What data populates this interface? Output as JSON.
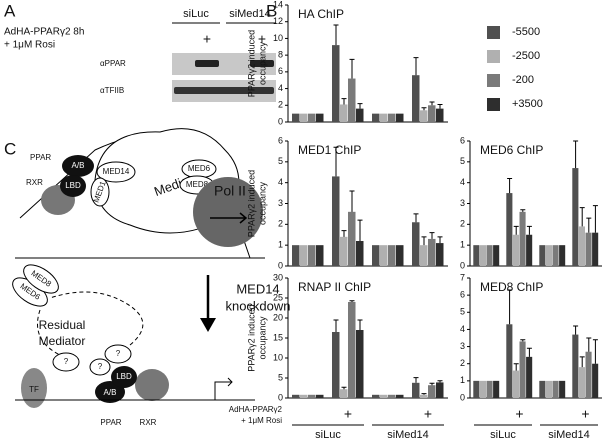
{
  "panel_labels": [
    "A",
    "B",
    "C"
  ],
  "blot": {
    "treatment": [
      "AdHA-PPARγ2 8h",
      "+ 1μM Rosi"
    ],
    "groups": [
      "siLuc",
      "siMed14"
    ],
    "lanes": [
      null,
      "+",
      null,
      "+"
    ],
    "bands": [
      "αPPAR",
      "αTFIIB"
    ]
  },
  "x_axis": {
    "treatment": [
      "AdHA-PPARγ2",
      "+ 1μM Rosi"
    ],
    "lanes": [
      null,
      "+",
      null,
      "+"
    ],
    "groups": [
      "siLuc",
      "siMed14"
    ]
  },
  "chart_data": [
    {
      "type": "bar",
      "title": "HA ChIP",
      "ylabel": [
        "PPARγ2 induced",
        "occupancy"
      ],
      "ylim": [
        0,
        14
      ],
      "yticks": [
        0,
        2,
        4,
        6,
        8,
        10,
        12,
        14
      ],
      "legend": true,
      "series": [
        {
          "name": "-5500",
          "color": "#505050",
          "values": [
            1,
            9.2,
            1,
            5.6
          ],
          "errors": [
            null,
            2.4,
            null,
            2.1
          ]
        },
        {
          "name": "-2500",
          "color": "#b0b0b0",
          "values": [
            1,
            2.1,
            1,
            1.4
          ],
          "errors": [
            null,
            0.7,
            null,
            0.3
          ]
        },
        {
          "name": "-200",
          "color": "#7a7a7a",
          "values": [
            1,
            5.2,
            1,
            2.0
          ],
          "errors": [
            null,
            2.3,
            null,
            0.4
          ]
        },
        {
          "name": "+3500",
          "color": "#2e2e2e",
          "values": [
            1,
            1.6,
            1,
            1.6
          ],
          "errors": [
            null,
            0.6,
            null,
            0.5
          ]
        }
      ]
    },
    {
      "type": "bar",
      "title": "MED1 ChIP",
      "ylabel": [
        "PPARγ2 induced",
        "occupancy"
      ],
      "ylim": [
        0,
        6
      ],
      "yticks": [
        0,
        1,
        2,
        3,
        4,
        5,
        6
      ],
      "legend": false,
      "series": [
        {
          "name": "-5500",
          "color": "#505050",
          "values": [
            1,
            4.3,
            1,
            2.1
          ],
          "errors": [
            null,
            1.4,
            null,
            0.4
          ]
        },
        {
          "name": "-2500",
          "color": "#b0b0b0",
          "values": [
            1,
            1.4,
            1,
            1.0
          ],
          "errors": [
            null,
            0.3,
            null,
            0.4
          ]
        },
        {
          "name": "-200",
          "color": "#7a7a7a",
          "values": [
            1,
            2.6,
            1,
            1.3
          ],
          "errors": [
            null,
            1.0,
            null,
            0.3
          ]
        },
        {
          "name": "+3500",
          "color": "#2e2e2e",
          "values": [
            1,
            1.2,
            1,
            1.1
          ],
          "errors": [
            null,
            1.0,
            null,
            0.3
          ]
        }
      ]
    },
    {
      "type": "bar",
      "title": "MED6 ChIP",
      "ylim": [
        0,
        6
      ],
      "yticks": [
        0,
        1,
        2,
        3,
        4,
        5,
        6
      ],
      "legend": false,
      "series": [
        {
          "name": "-5500",
          "color": "#505050",
          "values": [
            1,
            3.5,
            1,
            4.7
          ],
          "errors": [
            null,
            0.7,
            null,
            1.3
          ]
        },
        {
          "name": "-2500",
          "color": "#b0b0b0",
          "values": [
            1,
            1.5,
            1,
            1.9
          ],
          "errors": [
            null,
            0.4,
            null,
            0.9
          ]
        },
        {
          "name": "-200",
          "color": "#7a7a7a",
          "values": [
            1,
            2.6,
            1,
            1.6
          ],
          "errors": [
            null,
            0.1,
            null,
            0.7
          ]
        },
        {
          "name": "+3500",
          "color": "#2e2e2e",
          "values": [
            1,
            1.5,
            1,
            1.6
          ],
          "errors": [
            null,
            0.4,
            null,
            1.3
          ]
        }
      ]
    },
    {
      "type": "bar",
      "title": "RNAP II ChIP",
      "ylabel": [
        "PPARγ2 induced",
        "occupancy"
      ],
      "ylim": [
        0,
        30
      ],
      "yticks": [
        0,
        5,
        10,
        15,
        20,
        25,
        30
      ],
      "legend": false,
      "series": [
        {
          "name": "-5500",
          "color": "#505050",
          "values": [
            0.8,
            16.5,
            0.8,
            3.8
          ],
          "errors": [
            null,
            3.0,
            null,
            1.3
          ]
        },
        {
          "name": "-2500",
          "color": "#b0b0b0",
          "values": [
            0.8,
            2.2,
            0.8,
            0.8
          ],
          "errors": [
            null,
            0.5,
            null,
            0.3
          ]
        },
        {
          "name": "-200",
          "color": "#7a7a7a",
          "values": [
            0.8,
            24,
            0.8,
            3.2
          ],
          "errors": [
            null,
            0.3,
            null,
            0.5
          ]
        },
        {
          "name": "+3500",
          "color": "#2e2e2e",
          "values": [
            0.8,
            17,
            0.8,
            3.9
          ],
          "errors": [
            null,
            2.5,
            null,
            0.4
          ]
        }
      ]
    },
    {
      "type": "bar",
      "title": "MED8 ChIP",
      "ylim": [
        0,
        7
      ],
      "yticks": [
        0,
        1,
        2,
        3,
        4,
        5,
        6,
        7
      ],
      "legend": false,
      "series": [
        {
          "name": "-5500",
          "color": "#505050",
          "values": [
            1,
            4.3,
            1,
            3.7
          ],
          "errors": [
            null,
            2.0,
            null,
            0.5
          ]
        },
        {
          "name": "-2500",
          "color": "#b0b0b0",
          "values": [
            1,
            1.6,
            1,
            1.8
          ],
          "errors": [
            null,
            0.4,
            null,
            0.6
          ]
        },
        {
          "name": "-200",
          "color": "#7a7a7a",
          "values": [
            1,
            3.3,
            1,
            2.7
          ],
          "errors": [
            null,
            0.1,
            null,
            0.8
          ]
        },
        {
          "name": "+3500",
          "color": "#2e2e2e",
          "values": [
            1,
            2.4,
            1,
            2.0
          ],
          "errors": [
            null,
            0.5,
            null,
            1.4
          ]
        }
      ]
    }
  ],
  "diagram": {
    "top": {
      "ppar": "PPAR",
      "rxr": "RXR",
      "ab": "A/B",
      "lbd": "LBD",
      "med14": "MED14",
      "med1": "MED1",
      "mediator": "Mediator",
      "med6": "MED6",
      "med8": "MED8",
      "pol2": "Pol II"
    },
    "step": [
      "MED14",
      "knockdown"
    ],
    "bottom": {
      "med6": "MED6",
      "med8": "MED8",
      "residual": [
        "Residual",
        "Mediator"
      ],
      "unknown": [
        "?",
        "?",
        "?"
      ],
      "tf": "TF",
      "ab": "A/B",
      "lbd": "LBD",
      "ppar": "PPAR",
      "rxr": "RXR"
    }
  }
}
